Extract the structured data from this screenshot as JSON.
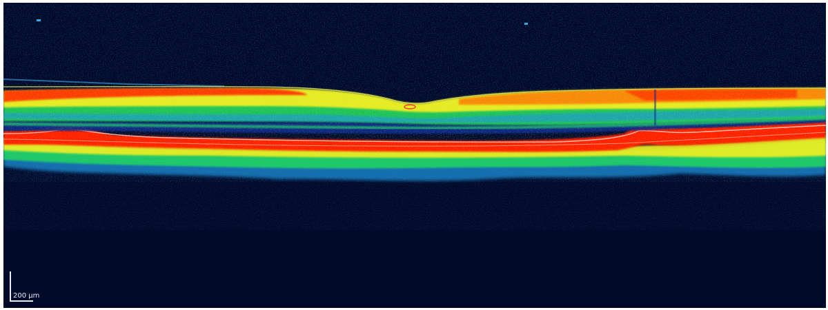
{
  "image": {
    "description_type": "OCT retinal cross-section, false-color",
    "background_color": "#020a2a",
    "colormap": [
      "#020a2a",
      "#0d2a7a",
      "#1aa0ff",
      "#20e060",
      "#f0f020",
      "#ff8000",
      "#ff1a00",
      "#ffffff"
    ]
  },
  "scale_bar": {
    "label": "200 µm"
  }
}
